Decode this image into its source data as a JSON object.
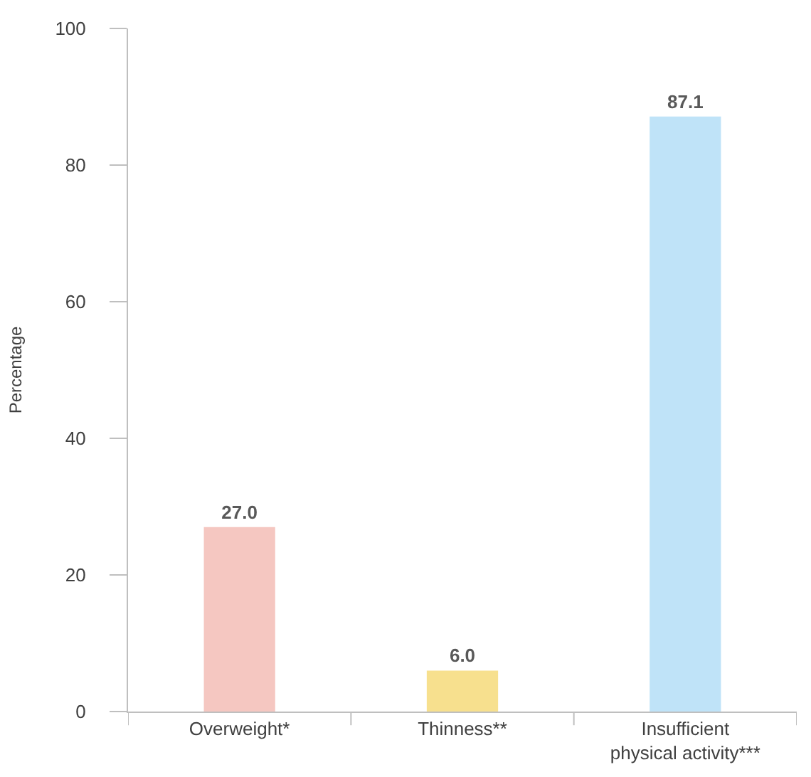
{
  "chart_data": {
    "type": "bar",
    "ylabel": "Percentage",
    "categories": [
      "Overweight*",
      "Thinness**",
      "Insufficient physical activity***"
    ],
    "values": [
      27.0,
      6.0,
      87.1
    ],
    "colors": [
      "#f5c7c1",
      "#f7e08e",
      "#bfe3f8"
    ],
    "ylim": [
      0,
      100
    ],
    "yticks": [
      0,
      20,
      40,
      60,
      80,
      100
    ],
    "grid": false,
    "value_labels": [
      "27.0",
      "6.0",
      "87.1"
    ]
  }
}
